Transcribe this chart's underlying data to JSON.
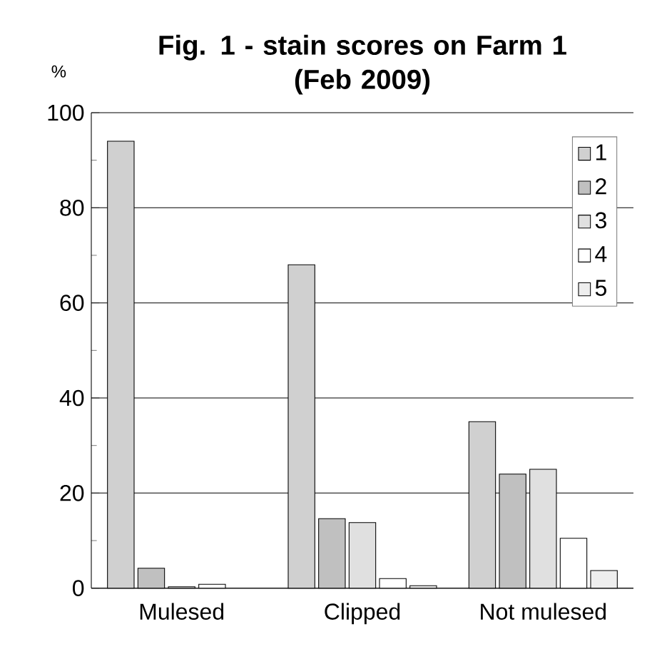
{
  "chart_data": {
    "type": "bar",
    "title": "Fig. 1 - stain scores on Farm 1\n(Feb 2009)",
    "ylabel": "%",
    "categories": [
      "Mulesed",
      "Clipped",
      "Not mulesed"
    ],
    "series": [
      {
        "name": "1",
        "color": "#d0d0d0",
        "values": [
          94,
          68,
          35
        ]
      },
      {
        "name": "2",
        "color": "#c0c0c0",
        "values": [
          4.2,
          14.6,
          24
        ]
      },
      {
        "name": "3",
        "color": "#e0e0e0",
        "values": [
          0.3,
          13.8,
          25
        ]
      },
      {
        "name": "4",
        "color": "#ffffff",
        "values": [
          0.8,
          2,
          10.5
        ]
      },
      {
        "name": "5",
        "color": "#eeeeee",
        "values": [
          null,
          0.5,
          3.7
        ]
      }
    ],
    "ylim": [
      0,
      100
    ],
    "yticks": [
      0,
      20,
      40,
      60,
      80,
      100
    ],
    "grid": "y",
    "legend": "top right"
  }
}
